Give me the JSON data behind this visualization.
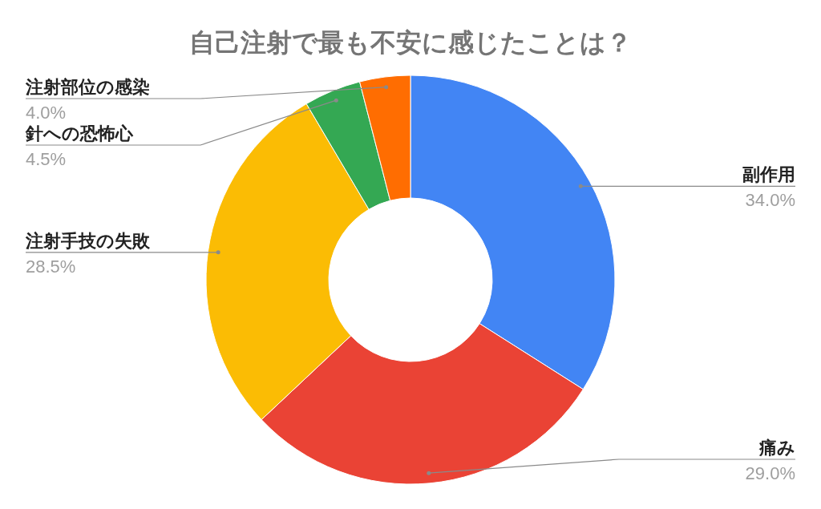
{
  "chart_data": {
    "type": "donut",
    "title": "自己注射で最も不安に感じたことは？",
    "categories": [
      "副作用",
      "痛み",
      "注射手技の失敗",
      "針への恐怖心",
      "注射部位の感染"
    ],
    "values": [
      34.0,
      29.0,
      28.5,
      4.5,
      4.0
    ],
    "colors": [
      "#4285f4",
      "#ea4335",
      "#fbbc04",
      "#34a853",
      "#ff6d01"
    ],
    "value_labels": [
      "34.0%",
      "29.0%",
      "28.5%",
      "4.5%",
      "4.0%"
    ]
  }
}
